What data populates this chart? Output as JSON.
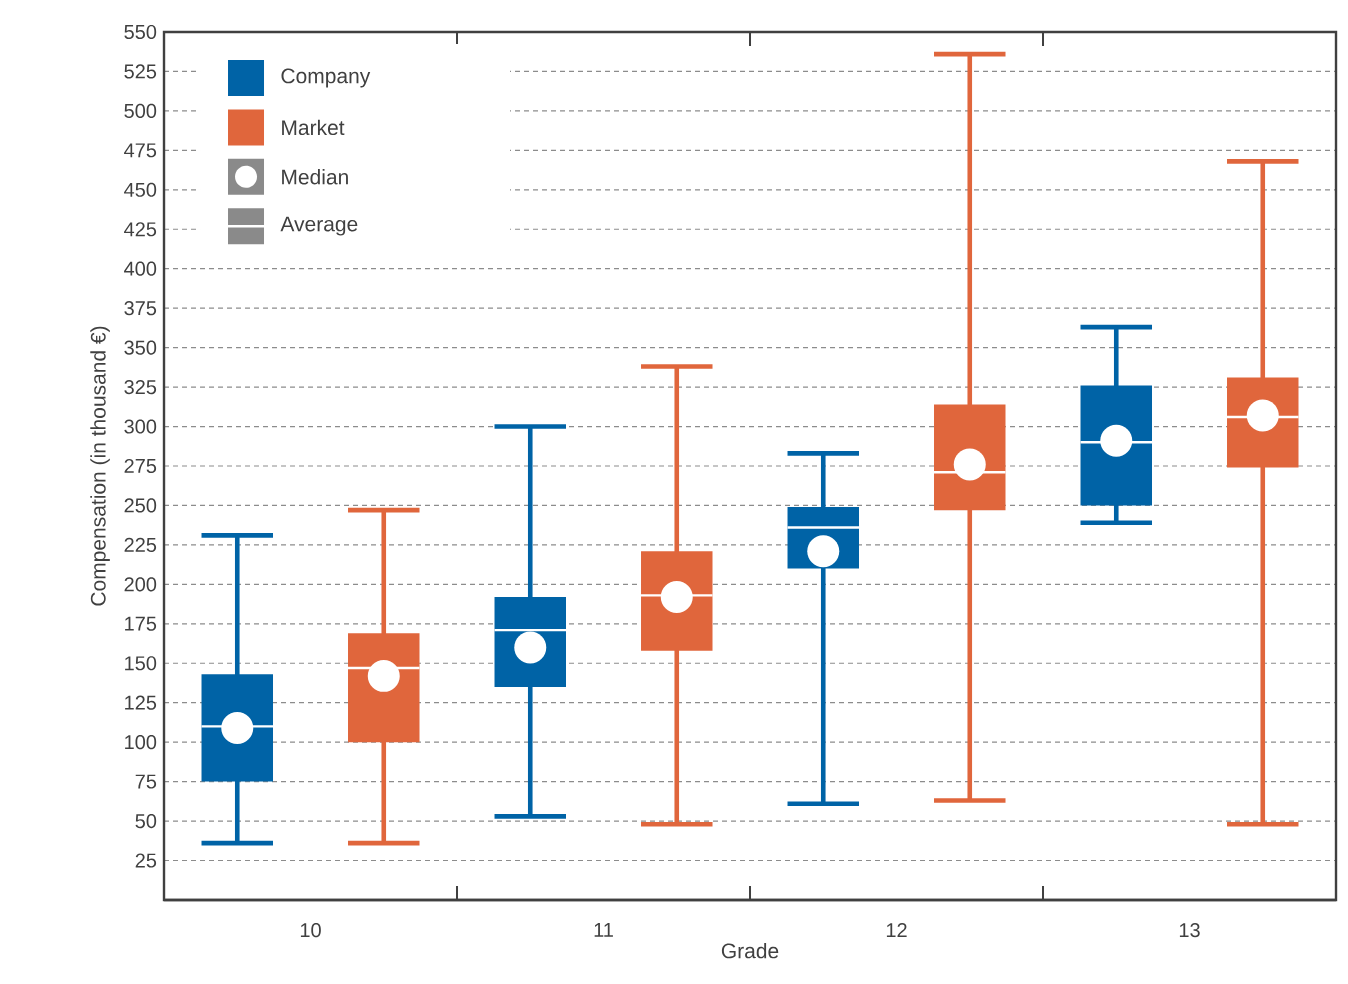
{
  "chart_data": {
    "type": "box",
    "categories": [
      "10",
      "11",
      "12",
      "13"
    ],
    "series": [
      {
        "name": "Company",
        "color": "#0063a6",
        "boxes": [
          {
            "low": 36,
            "q1": 75,
            "median": 109,
            "q3": 143,
            "high": 231,
            "mean": 110
          },
          {
            "low": 53,
            "q1": 135,
            "median": 160,
            "q3": 192,
            "high": 300,
            "mean": 171
          },
          {
            "low": 61,
            "q1": 210,
            "median": 221,
            "q3": 249,
            "high": 283,
            "mean": 236
          },
          {
            "low": 239,
            "q1": 250,
            "median": 291,
            "q3": 326,
            "high": 363,
            "mean": 290
          }
        ]
      },
      {
        "name": "Market",
        "color": "#e0663c",
        "boxes": [
          {
            "low": 36,
            "q1": 100,
            "median": 142,
            "q3": 169,
            "high": 247,
            "mean": 147
          },
          {
            "low": 48,
            "q1": 158,
            "median": 192,
            "q3": 221,
            "high": 338,
            "mean": 193
          },
          {
            "low": 63,
            "q1": 247,
            "median": 276,
            "q3": 314,
            "high": 536,
            "mean": 271
          },
          {
            "low": 48,
            "q1": 274,
            "median": 307,
            "q3": 331,
            "high": 468,
            "mean": 306
          }
        ]
      }
    ],
    "xlabel": "Grade",
    "ylabel": "Compensation (in thousand €)",
    "ylim": [
      0,
      550
    ],
    "yticks": [
      25,
      50,
      75,
      100,
      125,
      150,
      175,
      200,
      225,
      250,
      275,
      300,
      325,
      350,
      375,
      400,
      425,
      450,
      475,
      500,
      525,
      550
    ],
    "grid": "y",
    "legend": "top left",
    "annotations": [
      "Median",
      "Average"
    ]
  }
}
